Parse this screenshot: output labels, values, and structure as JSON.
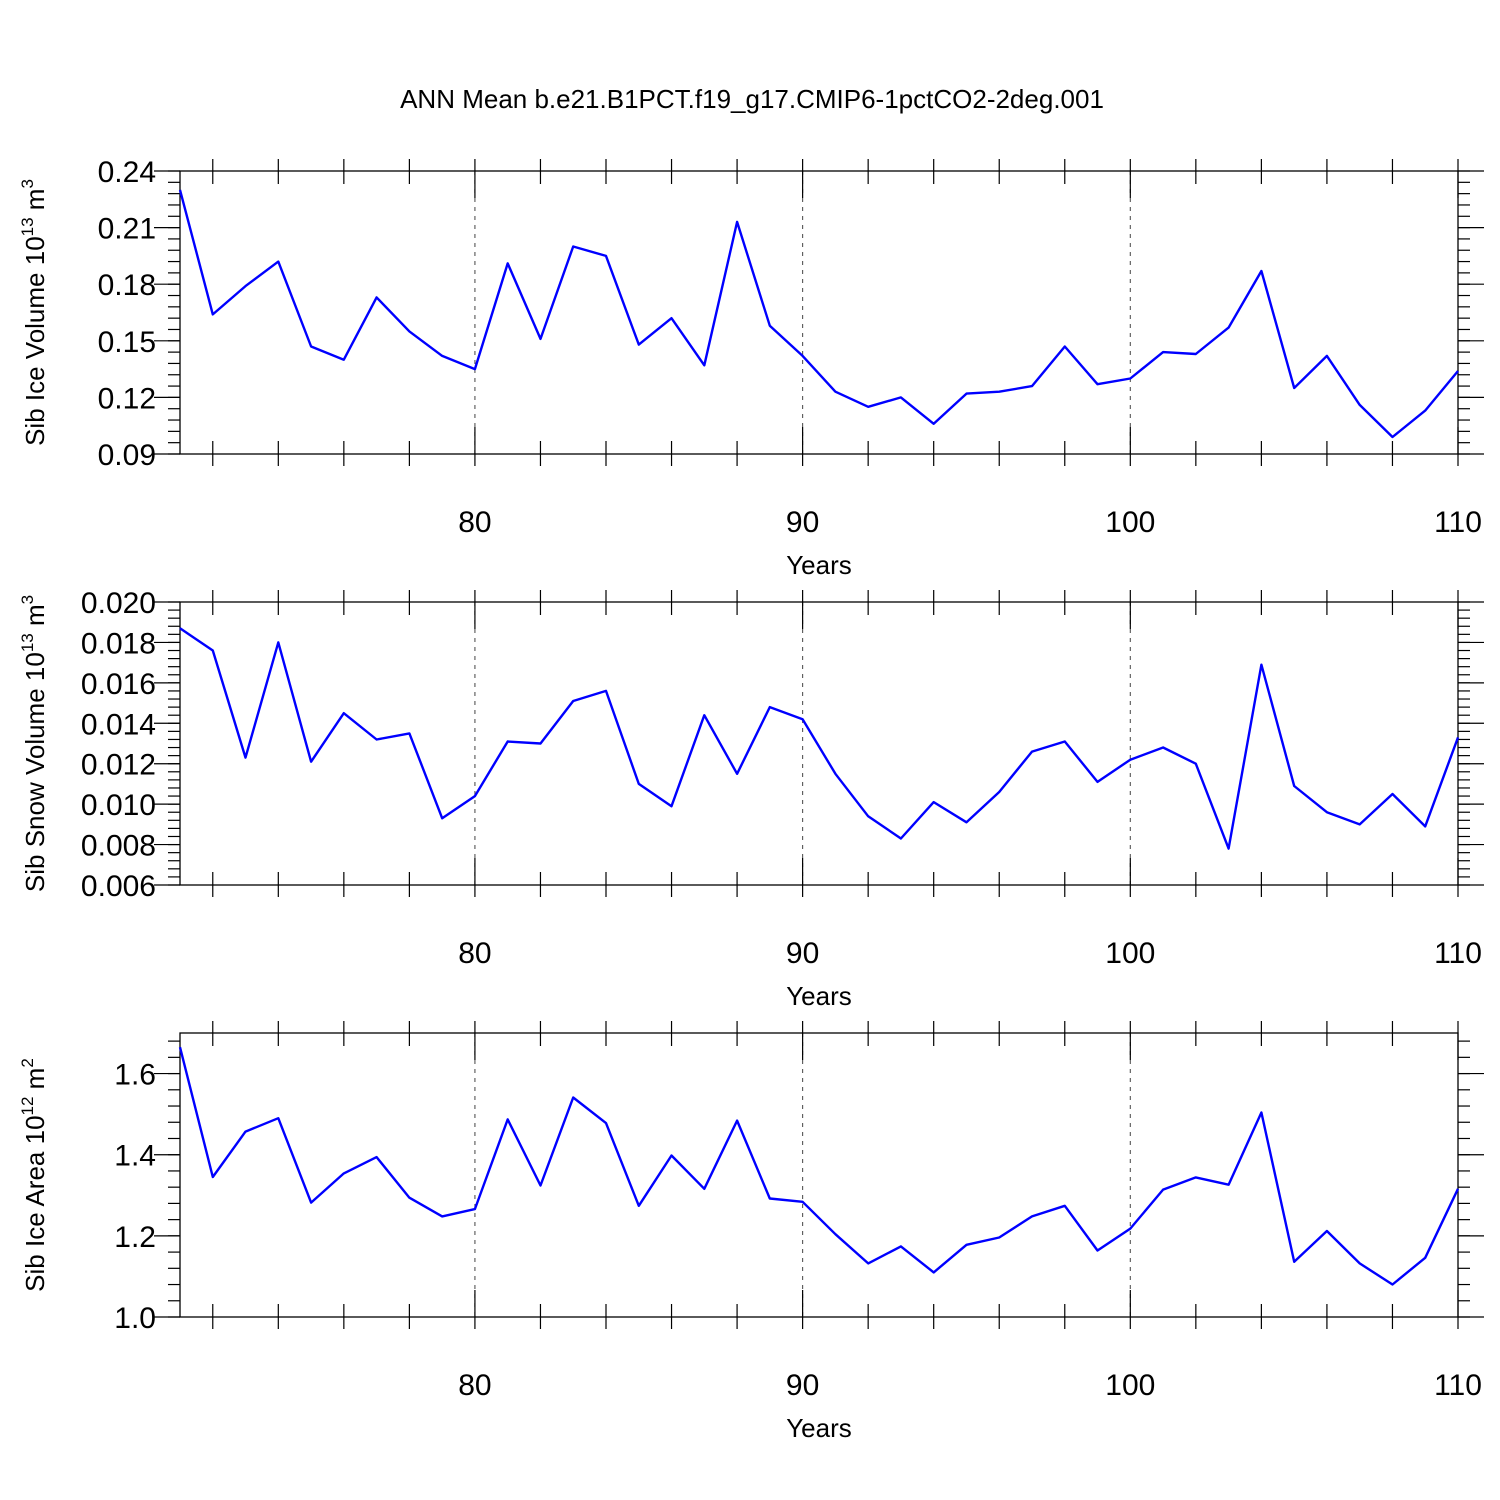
{
  "figure": {
    "title": "ANN Mean b.e21.B1PCT.f19_g17.CMIP6-1pctCO2-2deg.001",
    "line_color": "#0000ff"
  },
  "chart_data": [
    {
      "type": "line",
      "ylabel_main": "Sib Ice Volume 10",
      "ylabel_exp": "13",
      "ylabel_unit": " m",
      "ylabel_unit_exp": "3",
      "xlabel": "Years",
      "xlim": [
        71,
        110
      ],
      "ylim": [
        0.09,
        0.24
      ],
      "yticks": [
        0.09,
        0.12,
        0.15,
        0.18,
        0.21,
        0.24
      ],
      "ytick_labels": [
        "0.09",
        "0.12",
        "0.15",
        "0.18",
        "0.21",
        "0.24"
      ],
      "xticks": [
        80,
        90,
        100,
        110
      ],
      "xtick_labels": [
        "80",
        "90",
        "100",
        "110"
      ],
      "grid_x": [
        80,
        90,
        100
      ],
      "x": [
        71,
        72,
        73,
        74,
        75,
        76,
        77,
        78,
        79,
        80,
        81,
        82,
        83,
        84,
        85,
        86,
        87,
        88,
        89,
        90,
        91,
        92,
        93,
        94,
        95,
        96,
        97,
        98,
        99,
        100,
        101,
        102,
        103,
        104,
        105,
        106,
        107,
        108,
        109,
        110
      ],
      "y": [
        0.23,
        0.164,
        0.179,
        0.192,
        0.147,
        0.14,
        0.173,
        0.155,
        0.142,
        0.135,
        0.191,
        0.151,
        0.2,
        0.195,
        0.148,
        0.162,
        0.137,
        0.213,
        0.158,
        0.142,
        0.123,
        0.115,
        0.12,
        0.106,
        0.122,
        0.123,
        0.126,
        0.147,
        0.127,
        0.13,
        0.144,
        0.143,
        0.157,
        0.187,
        0.125,
        0.142,
        0.116,
        0.099,
        0.113,
        0.134
      ]
    },
    {
      "type": "line",
      "ylabel_main": "Sib Snow Volume 10",
      "ylabel_exp": "13",
      "ylabel_unit": " m",
      "ylabel_unit_exp": "3",
      "xlabel": "Years",
      "xlim": [
        71,
        110
      ],
      "ylim": [
        0.006,
        0.02
      ],
      "yticks": [
        0.006,
        0.008,
        0.01,
        0.012,
        0.014,
        0.016,
        0.018,
        0.02
      ],
      "ytick_labels": [
        "0.006",
        "0.008",
        "0.010",
        "0.012",
        "0.014",
        "0.016",
        "0.018",
        "0.020"
      ],
      "xticks": [
        80,
        90,
        100,
        110
      ],
      "xtick_labels": [
        "80",
        "90",
        "100",
        "110"
      ],
      "grid_x": [
        80,
        90,
        100
      ],
      "x": [
        71,
        72,
        73,
        74,
        75,
        76,
        77,
        78,
        79,
        80,
        81,
        82,
        83,
        84,
        85,
        86,
        87,
        88,
        89,
        90,
        91,
        92,
        93,
        94,
        95,
        96,
        97,
        98,
        99,
        100,
        101,
        102,
        103,
        104,
        105,
        106,
        107,
        108,
        109,
        110
      ],
      "y": [
        0.0187,
        0.0176,
        0.0123,
        0.018,
        0.0121,
        0.0145,
        0.0132,
        0.0135,
        0.0093,
        0.0104,
        0.0131,
        0.013,
        0.0151,
        0.0156,
        0.011,
        0.0099,
        0.0144,
        0.0115,
        0.0148,
        0.0142,
        0.0115,
        0.0094,
        0.0083,
        0.0101,
        0.0091,
        0.0106,
        0.0126,
        0.0131,
        0.0111,
        0.0122,
        0.0128,
        0.012,
        0.0078,
        0.0169,
        0.0109,
        0.0096,
        0.009,
        0.0105,
        0.0089,
        0.0133
      ]
    },
    {
      "type": "line",
      "ylabel_main": "Sib Ice Area 10",
      "ylabel_exp": "12",
      "ylabel_unit": " m",
      "ylabel_unit_exp": "2",
      "xlabel": "Years",
      "xlim": [
        71,
        110
      ],
      "ylim": [
        1.0,
        1.7
      ],
      "yticks": [
        1.0,
        1.2,
        1.4,
        1.6
      ],
      "ytick_labels": [
        "1.0",
        "1.2",
        "1.4",
        "1.6"
      ],
      "xticks": [
        80,
        90,
        100,
        110
      ],
      "xtick_labels": [
        "80",
        "90",
        "100",
        "110"
      ],
      "grid_x": [
        80,
        90,
        100
      ],
      "x": [
        71,
        72,
        73,
        74,
        75,
        76,
        77,
        78,
        79,
        80,
        81,
        82,
        83,
        84,
        85,
        86,
        87,
        88,
        89,
        90,
        91,
        92,
        93,
        94,
        95,
        96,
        97,
        98,
        99,
        100,
        101,
        102,
        103,
        104,
        105,
        106,
        107,
        108,
        109,
        110
      ],
      "y": [
        1.665,
        1.345,
        1.457,
        1.49,
        1.282,
        1.354,
        1.394,
        1.294,
        1.248,
        1.266,
        1.487,
        1.324,
        1.541,
        1.478,
        1.274,
        1.398,
        1.316,
        1.484,
        1.292,
        1.284,
        1.204,
        1.132,
        1.174,
        1.11,
        1.178,
        1.196,
        1.248,
        1.274,
        1.164,
        1.218,
        1.314,
        1.344,
        1.326,
        1.504,
        1.136,
        1.212,
        1.132,
        1.08,
        1.146,
        1.316
      ]
    }
  ]
}
